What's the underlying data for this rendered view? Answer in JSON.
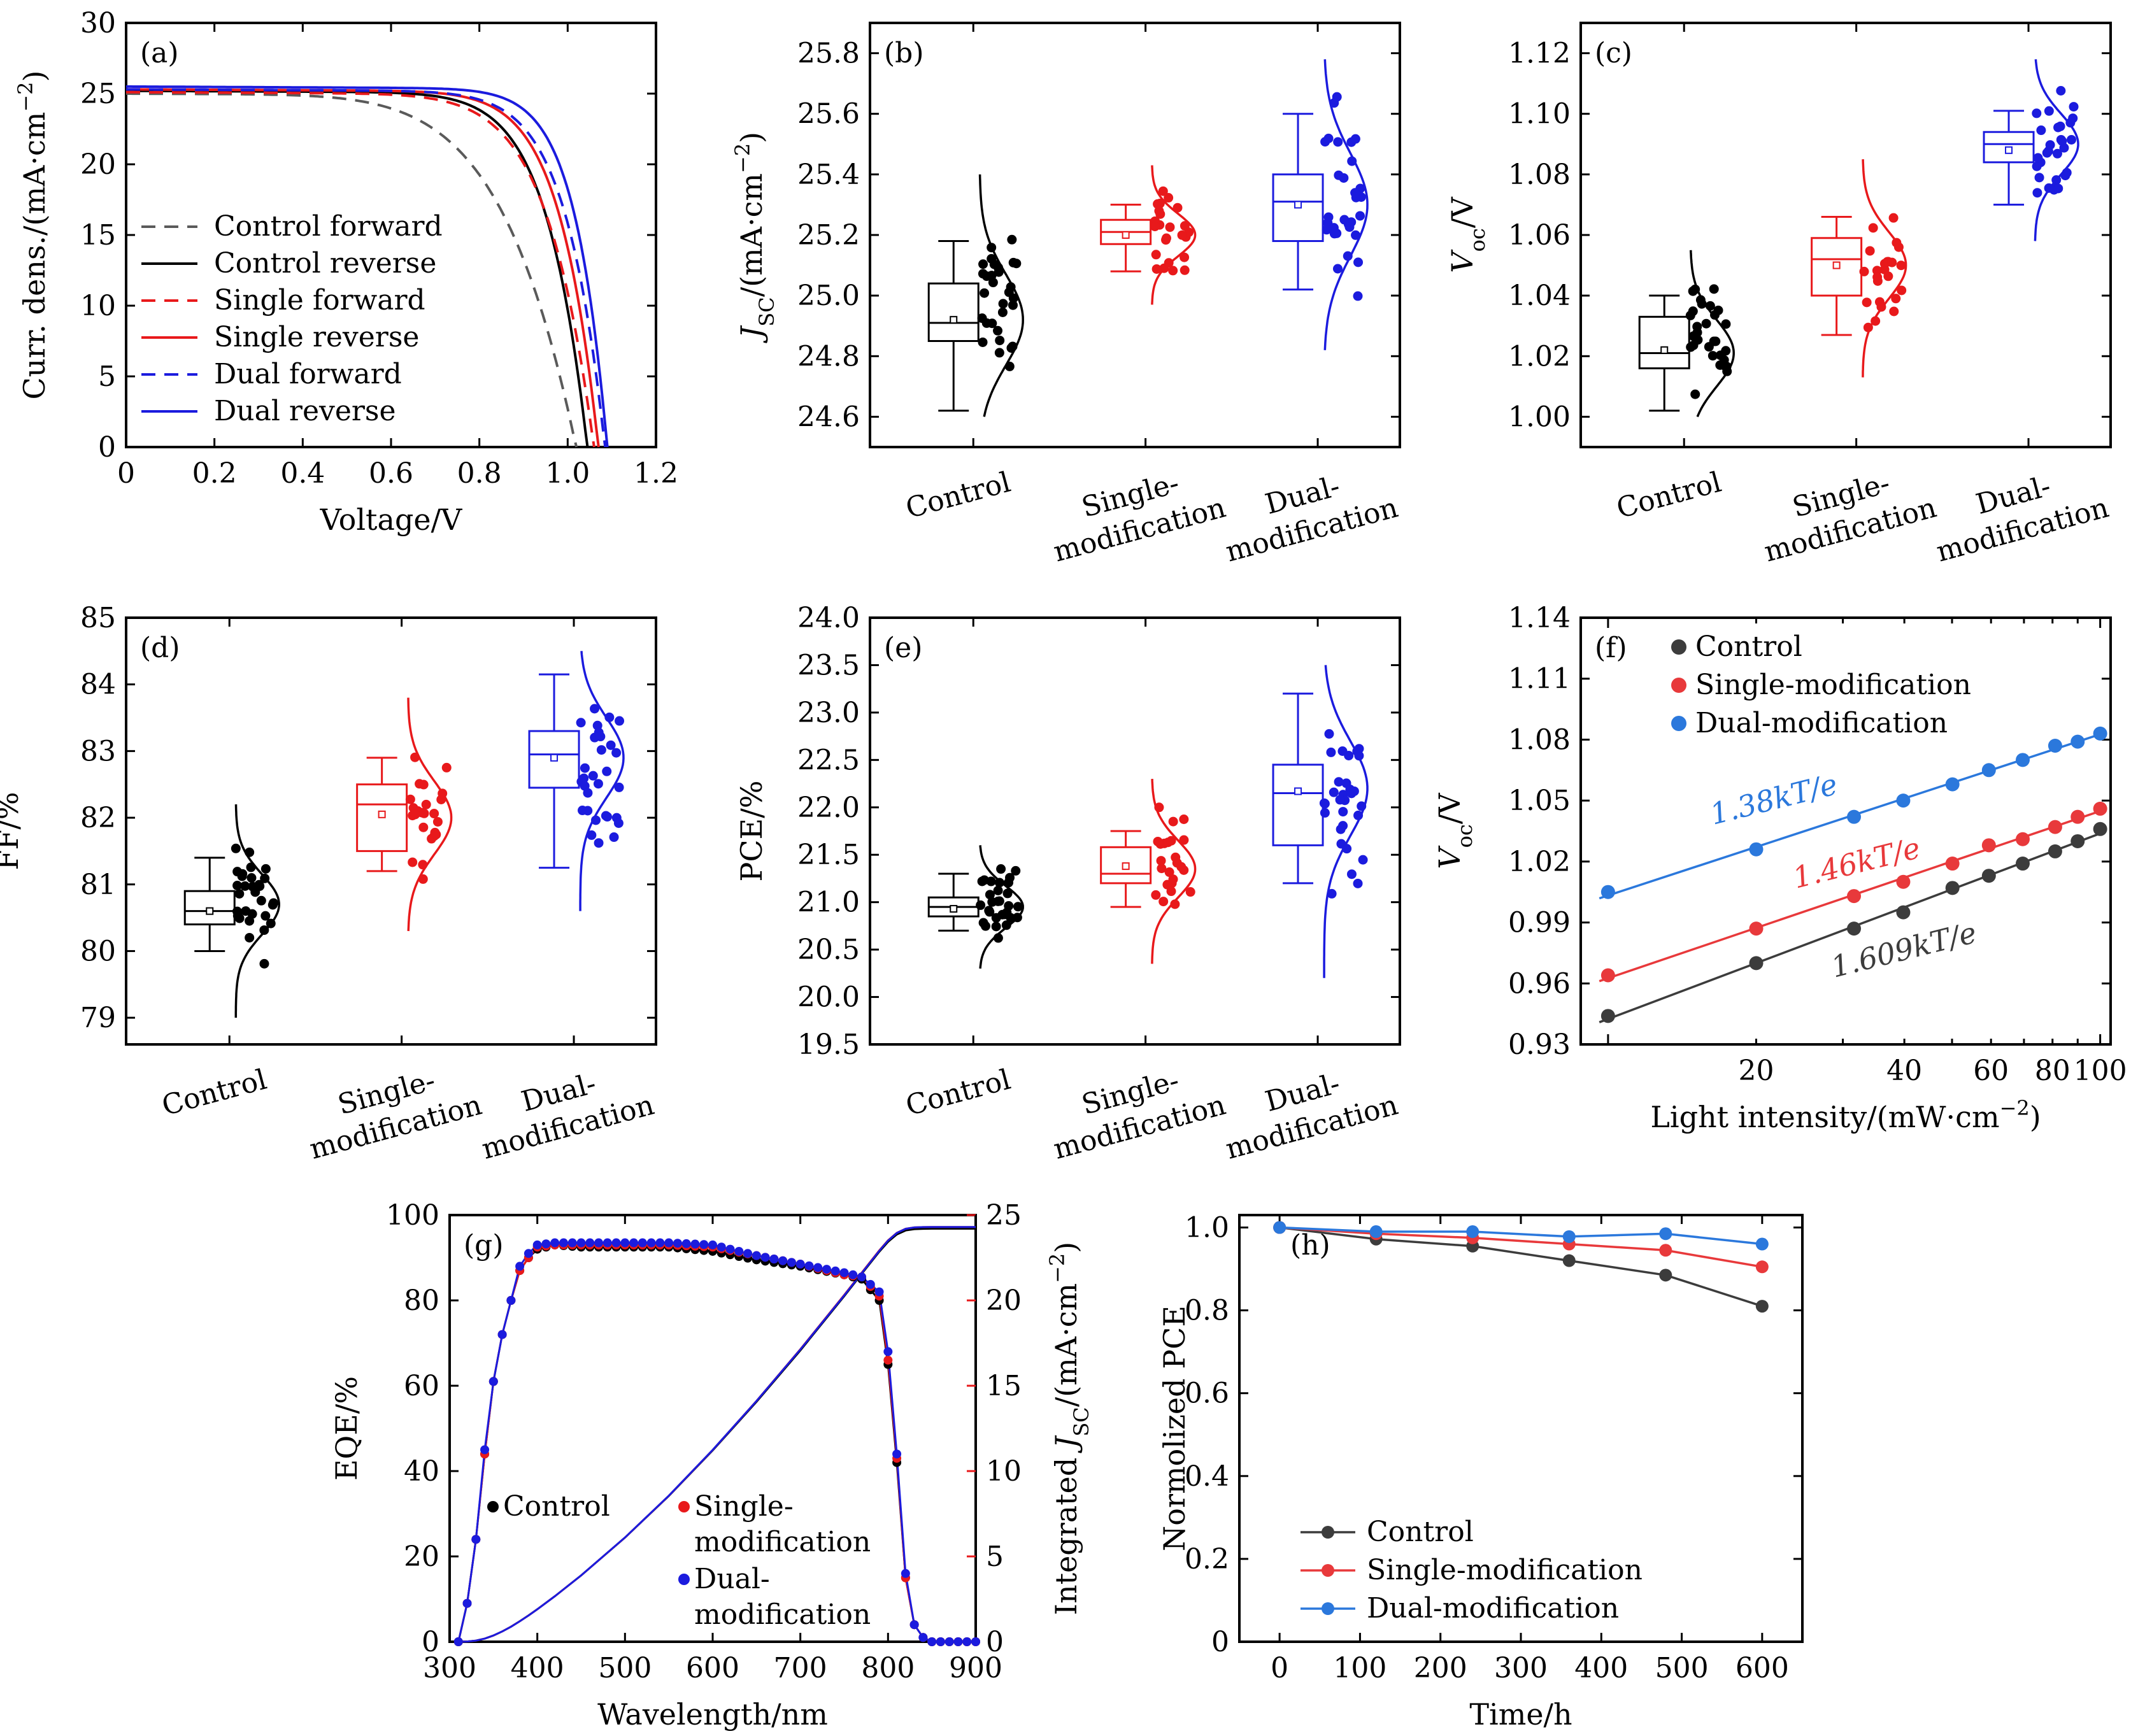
{
  "colors": {
    "black": "#000000",
    "red": "#e8191b",
    "blue": "#1b1bde",
    "f_black": "#3c3c3c",
    "f_red": "#e8393b",
    "f_blue": "#2b78dc",
    "g_red": "#e8191b"
  },
  "chart_data": [
    {
      "panel": "(a)",
      "type": "line",
      "xlabel": "Voltage/V",
      "ylabel": "Curr. dens./(mA·cm⁻²)",
      "xlim": [
        0,
        1.2
      ],
      "ylim": [
        0,
        30
      ],
      "xticks": [
        "0",
        "0.2",
        "0.4",
        "0.6",
        "0.8",
        "1.0",
        "1.2"
      ],
      "yticks": [
        "0",
        "5",
        "10",
        "15",
        "20",
        "25",
        "30"
      ],
      "legend": [
        "Control forward",
        "Control reverse",
        "Single forward",
        "Single reverse",
        "Dual forward",
        "Dual reverse"
      ],
      "series": [
        {
          "name": "Control forward",
          "style": "dashed",
          "color": "#5a5a5a",
          "jsc": 25.0,
          "voc": 1.02,
          "n": 3.5,
          "x": [
            0,
            0.2,
            0.4,
            0.6,
            0.7,
            0.8,
            0.9,
            0.95,
            1.0,
            1.02
          ],
          "y": [
            25.0,
            24.9,
            24.6,
            23.9,
            23.0,
            20.9,
            15.2,
            10.3,
            3.6,
            0.0
          ]
        },
        {
          "name": "Control reverse",
          "style": "solid",
          "color": "#000000",
          "jsc": 25.2,
          "voc": 1.045,
          "n": 1.75
        },
        {
          "name": "Single forward",
          "style": "dashed",
          "color": "#e8191b",
          "jsc": 25.1,
          "voc": 1.06,
          "n": 2.0
        },
        {
          "name": "Single reverse",
          "style": "solid",
          "color": "#e8191b",
          "jsc": 25.3,
          "voc": 1.07,
          "n": 1.6
        },
        {
          "name": "Dual forward",
          "style": "dashed",
          "color": "#1b1bde",
          "jsc": 25.3,
          "voc": 1.085,
          "n": 1.6
        },
        {
          "name": "Dual reverse",
          "style": "solid",
          "color": "#1b1bde",
          "jsc": 25.5,
          "voc": 1.09,
          "n": 1.3
        }
      ]
    },
    {
      "panel": "(b)",
      "type": "box",
      "ylabel": "J_SC/(mA·cm⁻²)",
      "ylim": [
        24.5,
        25.9
      ],
      "yticks": [
        "24.6",
        "24.8",
        "25.0",
        "25.2",
        "25.4",
        "25.6",
        "25.8"
      ],
      "categories": [
        "Control",
        "Single-\nmodification",
        "Dual-\nmodification"
      ],
      "groups": [
        {
          "name": "Control",
          "color": "#000000",
          "min": 24.62,
          "q1": 24.85,
          "median": 24.91,
          "q3": 25.04,
          "max": 25.18,
          "mean": 24.92,
          "mu": 24.92,
          "sigma": 0.15,
          "lo": 24.6,
          "hi": 25.4
        },
        {
          "name": "Single-modification",
          "color": "#e8191b",
          "min": 25.08,
          "q1": 25.17,
          "median": 25.21,
          "q3": 25.25,
          "max": 25.3,
          "mean": 25.2,
          "mu": 25.2,
          "sigma": 0.07,
          "lo": 24.97,
          "hi": 25.43
        },
        {
          "name": "Dual-modification",
          "color": "#1b1bde",
          "min": 25.02,
          "q1": 25.18,
          "median": 25.31,
          "q3": 25.4,
          "max": 25.6,
          "mean": 25.3,
          "mu": 25.3,
          "sigma": 0.17,
          "lo": 24.82,
          "hi": 25.78
        }
      ]
    },
    {
      "panel": "(c)",
      "type": "box",
      "ylabel": "V_oc/V",
      "ylim": [
        0.99,
        1.13
      ],
      "yticks": [
        "1.00",
        "1.02",
        "1.04",
        "1.06",
        "1.08",
        "1.10",
        "1.12"
      ],
      "categories": [
        "Control",
        "Single-\nmodification",
        "Dual-\nmodification"
      ],
      "groups": [
        {
          "name": "Control",
          "color": "#000000",
          "min": 1.002,
          "q1": 1.016,
          "median": 1.021,
          "q3": 1.033,
          "max": 1.04,
          "mean": 1.022,
          "mu": 1.021,
          "sigma": 0.011,
          "lo": 1.0,
          "hi": 1.055
        },
        {
          "name": "Single-modification",
          "color": "#e8191b",
          "min": 1.027,
          "q1": 1.04,
          "median": 1.052,
          "q3": 1.059,
          "max": 1.066,
          "mean": 1.05,
          "mu": 1.05,
          "sigma": 0.011,
          "lo": 1.013,
          "hi": 1.085
        },
        {
          "name": "Dual-modification",
          "color": "#1b1bde",
          "min": 1.07,
          "q1": 1.084,
          "median": 1.09,
          "q3": 1.094,
          "max": 1.101,
          "mean": 1.088,
          "mu": 1.09,
          "sigma": 0.01,
          "lo": 1.058,
          "hi": 1.118
        }
      ]
    },
    {
      "panel": "(d)",
      "type": "box",
      "ylabel": "FF/%",
      "ylim": [
        78.6,
        85
      ],
      "yticks": [
        "79",
        "80",
        "81",
        "82",
        "83",
        "84",
        "85"
      ],
      "categories": [
        "Control",
        "Single-\nmodification",
        "Dual-\nmodification"
      ],
      "groups": [
        {
          "name": "Control",
          "color": "#000000",
          "min": 80.0,
          "q1": 80.4,
          "median": 80.6,
          "q3": 80.9,
          "max": 81.4,
          "mean": 80.6,
          "mu": 80.7,
          "sigma": 0.45,
          "lo": 79.0,
          "hi": 82.2
        },
        {
          "name": "Single-modification",
          "color": "#e8191b",
          "min": 81.2,
          "q1": 81.5,
          "median": 82.2,
          "q3": 82.5,
          "max": 82.9,
          "mean": 82.05,
          "mu": 82.0,
          "sigma": 0.55,
          "lo": 80.3,
          "hi": 83.8
        },
        {
          "name": "Dual-modification",
          "color": "#1b1bde",
          "min": 81.25,
          "q1": 82.45,
          "median": 82.95,
          "q3": 83.3,
          "max": 84.15,
          "mean": 82.9,
          "mu": 82.9,
          "sigma": 0.6,
          "lo": 80.6,
          "hi": 84.5
        }
      ]
    },
    {
      "panel": "(e)",
      "type": "box",
      "ylabel": "PCE/%",
      "ylim": [
        19.5,
        24.0
      ],
      "yticks": [
        "19.5",
        "20.0",
        "20.5",
        "21.0",
        "21.5",
        "22.0",
        "22.5",
        "23.0",
        "23.5",
        "24.0"
      ],
      "categories": [
        "Control",
        "Single-\nmodification",
        "Dual-\nmodification"
      ],
      "groups": [
        {
          "name": "Control",
          "color": "#000000",
          "min": 20.7,
          "q1": 20.85,
          "median": 20.95,
          "q3": 21.05,
          "max": 21.3,
          "mean": 20.93,
          "mu": 20.95,
          "sigma": 0.22,
          "lo": 20.3,
          "hi": 21.6
        },
        {
          "name": "Single-modification",
          "color": "#e8191b",
          "min": 20.95,
          "q1": 21.2,
          "median": 21.3,
          "q3": 21.58,
          "max": 21.75,
          "mean": 21.38,
          "mu": 21.35,
          "sigma": 0.3,
          "lo": 20.35,
          "hi": 22.3
        },
        {
          "name": "Dual-modification",
          "color": "#1b1bde",
          "min": 21.2,
          "q1": 21.6,
          "median": 22.15,
          "q3": 22.45,
          "max": 23.2,
          "mean": 22.17,
          "mu": 22.2,
          "sigma": 0.5,
          "lo": 20.2,
          "hi": 23.5
        }
      ]
    },
    {
      "panel": "(f)",
      "type": "scatter",
      "xlabel": "Light intensity/(mW·cm⁻²)",
      "ylabel": "V_oc/V",
      "xscale": "log",
      "xlim": [
        10,
        105
      ],
      "ylim": [
        0.93,
        1.14
      ],
      "xticks": [
        "20",
        "40",
        "60",
        "80",
        "100"
      ],
      "yticks": [
        "0.93",
        "0.96",
        "0.99",
        "1.02",
        "1.05",
        "1.08",
        "1.11",
        "1.14"
      ],
      "legend": [
        "Control",
        "Single-modification",
        "Dual-modification"
      ],
      "x": [
        10,
        20,
        31.6,
        39.8,
        50.1,
        59.4,
        69.6,
        81,
        90,
        100
      ],
      "series": [
        {
          "name": "Control",
          "color": "#3c3c3c",
          "values": [
            0.944,
            0.97,
            0.987,
            0.995,
            1.007,
            1.013,
            1.019,
            1.025,
            1.03,
            1.036
          ],
          "annotation": "1.609kT/e"
        },
        {
          "name": "Single-modification",
          "color": "#e8393b",
          "values": [
            0.964,
            0.987,
            1.003,
            1.01,
            1.019,
            1.028,
            1.031,
            1.037,
            1.042,
            1.046
          ],
          "annotation": "1.46kT/e"
        },
        {
          "name": "Dual-modification",
          "color": "#2b78dc",
          "values": [
            1.005,
            1.026,
            1.042,
            1.05,
            1.058,
            1.065,
            1.07,
            1.077,
            1.079,
            1.083
          ],
          "annotation": "1.38kT/e"
        }
      ]
    },
    {
      "panel": "(g)",
      "type": "line",
      "xlabel": "Wavelength/nm",
      "ylabel": "EQE/%",
      "y2label": "Integrated J_SC/(mA·cm⁻²)",
      "xlim": [
        300,
        900
      ],
      "ylim": [
        0,
        100
      ],
      "y2lim": [
        0,
        25
      ],
      "xticks": [
        "300",
        "400",
        "500",
        "600",
        "700",
        "800",
        "900"
      ],
      "yticks": [
        "0",
        "20",
        "40",
        "60",
        "80",
        "100"
      ],
      "y2ticks": [
        "0",
        "5",
        "10",
        "15",
        "20",
        "25"
      ],
      "legend": [
        "Control",
        "Single-\nmodification",
        "Dual-\nmodification"
      ],
      "eqe_x": [
        310,
        320,
        330,
        340,
        350,
        360,
        370,
        380,
        390,
        400,
        420,
        450,
        500,
        550,
        600,
        650,
        700,
        750,
        770,
        790,
        800,
        810,
        820,
        830,
        840,
        850,
        860,
        870,
        880,
        890,
        900
      ],
      "series": [
        {
          "name": "Control",
          "color": "#000000",
          "eqe": [
            0,
            9,
            24,
            44,
            61,
            72,
            80,
            87,
            90,
            92,
            93,
            92.5,
            92.5,
            92.5,
            91.5,
            89.5,
            88,
            86,
            85,
            80,
            65,
            42,
            15,
            4,
            1,
            0,
            0,
            0,
            0,
            0,
            0
          ],
          "integrated_end": 24.2
        },
        {
          "name": "Single-modification",
          "color": "#e8191b",
          "eqe": [
            0,
            9,
            24,
            44,
            61,
            72,
            80,
            87,
            90,
            92.5,
            93,
            93,
            93,
            93,
            92.5,
            90.5,
            88.5,
            86,
            85.5,
            81,
            66,
            43,
            15,
            4,
            1,
            0,
            0,
            0,
            0,
            0,
            0
          ],
          "integrated_end": 24.3
        },
        {
          "name": "Dual-modification",
          "color": "#1b1bde",
          "eqe": [
            0,
            9,
            24,
            45,
            61,
            72,
            80,
            88,
            91,
            93,
            93.5,
            93.5,
            93.5,
            93.5,
            93,
            90.5,
            88.5,
            86.5,
            85.5,
            82,
            68,
            44,
            16,
            4,
            1,
            0,
            0,
            0,
            0,
            0,
            0
          ],
          "integrated_end": 24.3
        }
      ]
    },
    {
      "panel": "(h)",
      "type": "line",
      "xlabel": "Time/h",
      "ylabel": "Normolized PCE",
      "xlim": [
        -50,
        650
      ],
      "ylim": [
        0,
        1.03
      ],
      "xticks": [
        "0",
        "100",
        "200",
        "300",
        "400",
        "500",
        "600"
      ],
      "yticks": [
        "0",
        "0.2",
        "0.4",
        "0.6",
        "0.8",
        "1.0"
      ],
      "legend": [
        "Control",
        "Single-modification",
        "Dual-modification"
      ],
      "x": [
        0,
        120,
        240,
        360,
        480,
        600
      ],
      "series": [
        {
          "name": "Control",
          "color": "#3c3c3c",
          "values": [
            1.0,
            0.972,
            0.955,
            0.92,
            0.885,
            0.81
          ]
        },
        {
          "name": "Single-modification",
          "color": "#e8393b",
          "values": [
            1.0,
            0.985,
            0.975,
            0.96,
            0.945,
            0.905
          ]
        },
        {
          "name": "Dual-modification",
          "color": "#2b78dc",
          "values": [
            1.0,
            0.99,
            0.99,
            0.978,
            0.985,
            0.96
          ]
        }
      ]
    }
  ]
}
